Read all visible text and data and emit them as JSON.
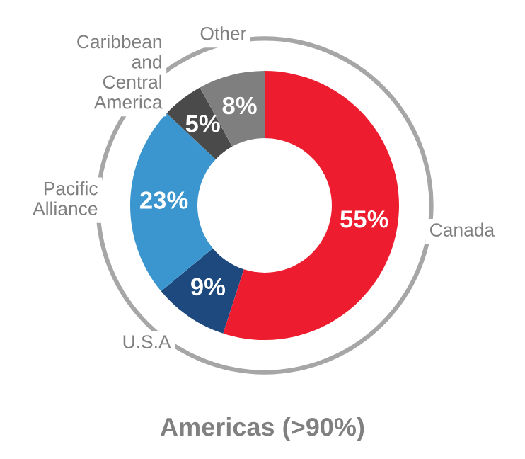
{
  "chart_data": {
    "type": "donut",
    "title": "Americas (>90%)",
    "categories": [
      "Canada",
      "U.S.A",
      "Pacific\nAlliance",
      "Caribbean\nand\nCentral\nAmerica",
      "Other"
    ],
    "values": [
      55,
      9,
      23,
      5,
      8
    ],
    "colors": [
      "#ed1c2e",
      "#1d497e",
      "#3b96cf",
      "#4a4a4a",
      "#7f7f7f"
    ],
    "value_labels": [
      "55%",
      "9%",
      "23%",
      "5%",
      "8%"
    ],
    "legend": false
  }
}
